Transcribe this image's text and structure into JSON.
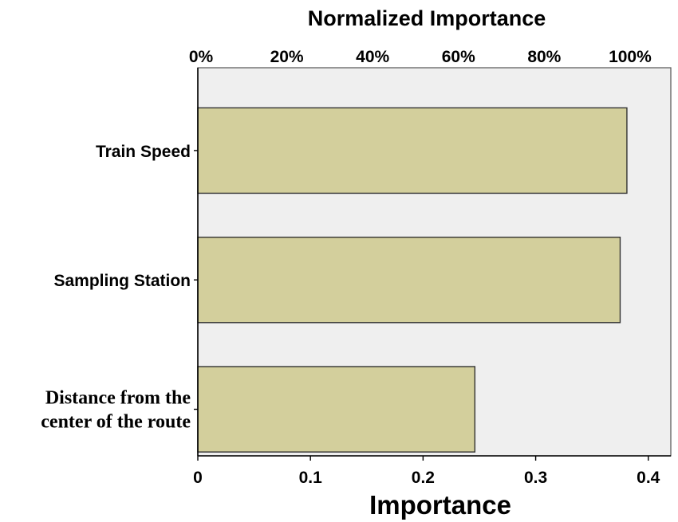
{
  "chart_data": {
    "type": "bar",
    "orientation": "horizontal",
    "categories": [
      [
        "Train Speed"
      ],
      [
        "Sampling Station"
      ],
      [
        "Distance from the",
        "center of the route"
      ]
    ],
    "values": [
      0.381,
      0.375,
      0.246
    ],
    "xlabel": "Importance",
    "x_ticks": [
      "0",
      "0.1",
      "0.2",
      "0.3",
      "0.4"
    ],
    "x_tick_values": [
      0,
      0.1,
      0.2,
      0.3,
      0.4
    ],
    "xlim": [
      0,
      0.42
    ],
    "top_axis_label": "Normalized Importance",
    "top_ticks": [
      "0%",
      "20%",
      "40%",
      "60%",
      "80%",
      "100%"
    ],
    "top_tick_values": [
      0,
      20,
      40,
      60,
      80,
      100
    ],
    "grid": false,
    "colors": {
      "bar_fill": "#d3cf9c",
      "bar_stroke": "#333333",
      "plot_background": "#efefef"
    }
  }
}
